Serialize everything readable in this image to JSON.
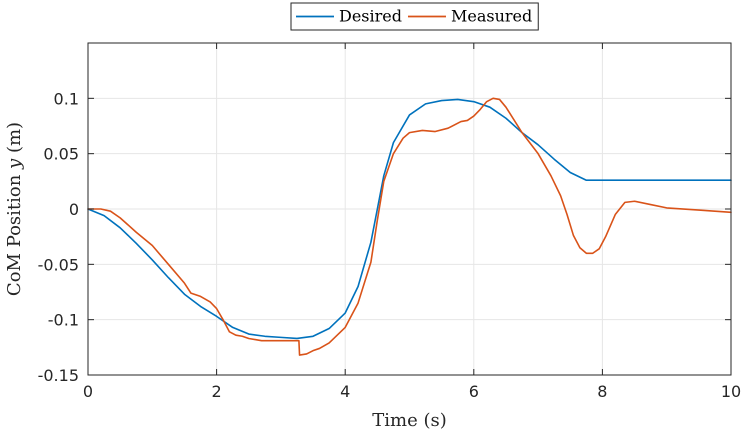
{
  "chart_data": {
    "type": "line",
    "title": "",
    "xlabel": "Time (s)",
    "ylabel_prefix": "CoM Position ",
    "ylabel_var": "y",
    "ylabel_suffix": " (m)",
    "xlim": [
      0,
      10
    ],
    "ylim": [
      -0.15,
      0.15
    ],
    "xticks": [
      0,
      2,
      4,
      6,
      8,
      10
    ],
    "xtick_labels": [
      "0",
      "2",
      "4",
      "6",
      "8",
      "10"
    ],
    "yticks": [
      -0.15,
      -0.1,
      -0.05,
      0,
      0.05,
      0.1
    ],
    "ytick_labels": [
      "-0.15",
      "-0.1",
      "-0.05",
      "0",
      "0.05",
      "0.1"
    ],
    "grid": true,
    "legend_position": "top-center-outside",
    "series": [
      {
        "name": "Desired",
        "color": "#0072BD",
        "x": [
          0,
          0.25,
          0.5,
          0.75,
          1.0,
          1.25,
          1.5,
          1.75,
          2.0,
          2.25,
          2.5,
          2.75,
          3.0,
          3.25,
          3.5,
          3.75,
          4.0,
          4.2,
          4.4,
          4.5,
          4.6,
          4.75,
          5.0,
          5.25,
          5.5,
          5.75,
          6.0,
          6.25,
          6.5,
          6.75,
          7.0,
          7.25,
          7.5,
          7.75,
          8.0,
          8.5,
          9.0,
          9.5,
          10.0
        ],
        "y": [
          0,
          -0.006,
          -0.017,
          -0.031,
          -0.046,
          -0.062,
          -0.077,
          -0.088,
          -0.097,
          -0.107,
          -0.113,
          -0.115,
          -0.116,
          -0.117,
          -0.115,
          -0.108,
          -0.094,
          -0.07,
          -0.03,
          0.0,
          0.03,
          0.06,
          0.085,
          0.095,
          0.098,
          0.099,
          0.097,
          0.092,
          0.082,
          0.069,
          0.058,
          0.045,
          0.033,
          0.026,
          0.026,
          0.026,
          0.026,
          0.026,
          0.026
        ]
      },
      {
        "name": "Measured",
        "color": "#D95319",
        "x": [
          0,
          0.2,
          0.35,
          0.5,
          0.75,
          1.0,
          1.25,
          1.5,
          1.6,
          1.75,
          1.9,
          2.0,
          2.1,
          2.2,
          2.3,
          2.4,
          2.5,
          2.6,
          2.7,
          2.8,
          3.0,
          3.28,
          3.29,
          3.4,
          3.5,
          3.6,
          3.75,
          4.0,
          4.2,
          4.4,
          4.5,
          4.6,
          4.75,
          4.9,
          5.0,
          5.2,
          5.4,
          5.6,
          5.8,
          5.9,
          6.0,
          6.1,
          6.2,
          6.3,
          6.4,
          6.5,
          6.75,
          7.0,
          7.2,
          7.35,
          7.45,
          7.55,
          7.65,
          7.75,
          7.85,
          7.95,
          8.05,
          8.2,
          8.35,
          8.5,
          8.75,
          9.0,
          9.5,
          10.0
        ],
        "y": [
          0,
          0.0,
          -0.002,
          -0.008,
          -0.021,
          -0.033,
          -0.05,
          -0.067,
          -0.076,
          -0.079,
          -0.084,
          -0.09,
          -0.1,
          -0.111,
          -0.114,
          -0.115,
          -0.117,
          -0.118,
          -0.119,
          -0.119,
          -0.119,
          -0.119,
          -0.132,
          -0.131,
          -0.128,
          -0.126,
          -0.121,
          -0.107,
          -0.085,
          -0.048,
          -0.01,
          0.025,
          0.05,
          0.064,
          0.069,
          0.071,
          0.07,
          0.073,
          0.079,
          0.08,
          0.084,
          0.09,
          0.097,
          0.1,
          0.099,
          0.092,
          0.069,
          0.05,
          0.03,
          0.012,
          -0.005,
          -0.024,
          -0.035,
          -0.04,
          -0.04,
          -0.036,
          -0.025,
          -0.005,
          0.006,
          0.007,
          0.004,
          0.001,
          -0.001,
          -0.003
        ]
      }
    ]
  }
}
